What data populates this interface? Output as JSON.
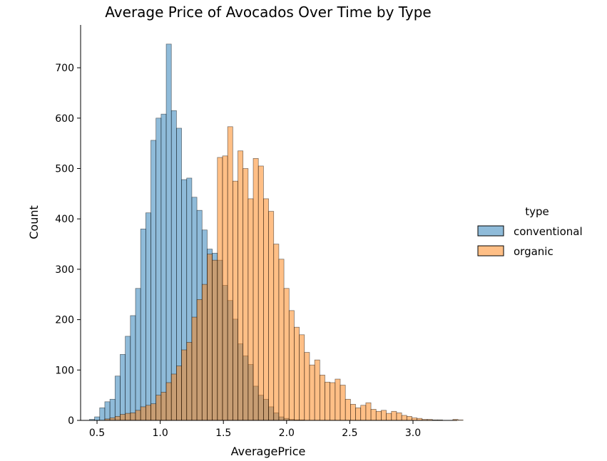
{
  "chart_data": {
    "type": "bar",
    "title": "Average Price of Avocados Over Time by Type",
    "xlabel": "AveragePrice",
    "ylabel": "Count",
    "xlim": [
      0.37,
      3.35
    ],
    "ylim": [
      0,
      785
    ],
    "bin_start": 0.44,
    "bin_width": 0.0405,
    "xticks": [
      {
        "value": 0.5,
        "label": "0.5"
      },
      {
        "value": 1.0,
        "label": "1.0"
      },
      {
        "value": 1.5,
        "label": "1.5"
      },
      {
        "value": 2.0,
        "label": "2.0"
      },
      {
        "value": 2.5,
        "label": "2.5"
      },
      {
        "value": 3.0,
        "label": "3.0"
      }
    ],
    "yticks": [
      {
        "value": 0,
        "label": "0"
      },
      {
        "value": 100,
        "label": "100"
      },
      {
        "value": 200,
        "label": "200"
      },
      {
        "value": 300,
        "label": "300"
      },
      {
        "value": 400,
        "label": "400"
      },
      {
        "value": 500,
        "label": "500"
      },
      {
        "value": 600,
        "label": "600"
      },
      {
        "value": 700,
        "label": "700"
      }
    ],
    "grid": false,
    "legend": {
      "title": "type",
      "placement": "right"
    },
    "series": [
      {
        "name": "conventional",
        "color": "#1f77b4",
        "values": [
          2,
          7,
          25,
          37,
          42,
          88,
          131,
          167,
          208,
          262,
          380,
          412,
          556,
          600,
          608,
          747,
          615,
          580,
          478,
          481,
          443,
          417,
          378,
          340,
          332,
          318,
          268,
          238,
          201,
          152,
          128,
          111,
          68,
          50,
          42,
          27,
          15,
          7,
          4,
          2,
          1,
          1,
          0,
          0,
          0,
          0,
          0,
          0,
          0,
          0,
          0,
          0,
          0,
          0,
          0,
          0,
          0,
          0,
          0,
          0,
          0,
          0,
          0,
          0,
          0,
          0,
          0,
          0,
          0,
          0,
          0,
          0,
          0
        ]
      },
      {
        "name": "organic",
        "color": "#ff7f0e",
        "values": [
          0,
          0,
          0,
          3,
          5,
          8,
          12,
          14,
          15,
          20,
          27,
          30,
          33,
          50,
          56,
          75,
          92,
          108,
          140,
          155,
          205,
          240,
          270,
          330,
          318,
          522,
          525,
          583,
          475,
          535,
          500,
          440,
          520,
          505,
          440,
          415,
          350,
          320,
          262,
          218,
          185,
          170,
          135,
          110,
          120,
          90,
          76,
          75,
          82,
          70,
          42,
          32,
          25,
          30,
          35,
          22,
          18,
          20,
          14,
          18,
          15,
          10,
          8,
          5,
          4,
          2,
          2,
          1,
          1,
          0,
          0,
          2,
          1
        ]
      }
    ]
  }
}
